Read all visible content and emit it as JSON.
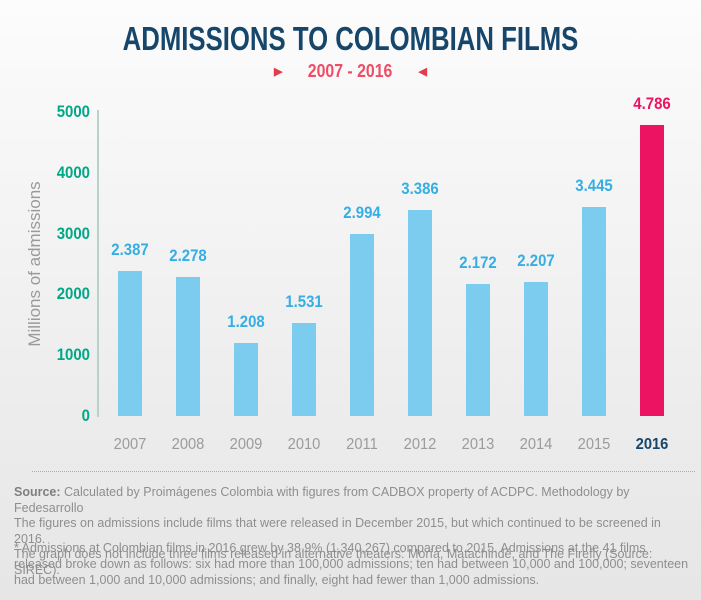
{
  "header": {
    "title": "ADMISSIONS TO COLOMBIAN FILMS",
    "subtitle": "2007 - 2016",
    "left_arrow": "▶",
    "right_arrow": "◀"
  },
  "chart_data": {
    "type": "bar",
    "title": "ADMISSIONS TO COLOMBIAN FILMS",
    "subtitle": "2007 - 2016",
    "ylabel": "Millions of admissions",
    "xlabel": "",
    "ylim": [
      0,
      5000
    ],
    "yticks": [
      0,
      1000,
      2000,
      3000,
      4000,
      5000
    ],
    "grid": false,
    "legend_position": "none",
    "categories": [
      "2007",
      "2008",
      "2009",
      "2010",
      "2011",
      "2012",
      "2013",
      "2014",
      "2015",
      "2016"
    ],
    "values": [
      2387,
      2278,
      1208,
      1531,
      2994,
      3386,
      2172,
      2207,
      3445,
      4786
    ],
    "value_labels": [
      "2.387",
      "2.278",
      "1.208",
      "1.531",
      "2.994",
      "3.386",
      "2.172",
      "2.207",
      "3.445",
      "4.786"
    ],
    "highlight_index": 9,
    "colors": {
      "bar": "#7cccef",
      "highlight_bar": "#ec1363",
      "value_label": "#35aee3",
      "highlight_value_label": "#ec1363",
      "tick_label": "#00a886",
      "axis_line": "#b5d4c8",
      "year_label": "#9b9b9b",
      "highlight_year_label": "#17466b",
      "title": "#17466b",
      "subtitle": "#ef4d66"
    }
  },
  "footer": {
    "source_label": "Source:",
    "source_line1": " Calculated by Proimágenes Colombia with figures from CADBOX property of ACDPC. Methodology by Fedesarrollo",
    "source_line2": "The figures on admissions include films that were released in December 2015, but which continued to be screened in 2016.",
    "source_line3": "The graph does not include three films released in alternative theaters: Moría, Matachindé, and The Firefly (Source: SIREC).",
    "footnote": "* Admissions at Colombian films in 2016 grew by 38.9% (1,340,267) compared to 2015. Admissions at the 41 films released broke down as follows: six had more than 100,000 admissions; ten had between 10,000 and 100,000; seventeen had between 1,000 and 10,000 admissions; and finally, eight had fewer than 1,000 admissions."
  }
}
